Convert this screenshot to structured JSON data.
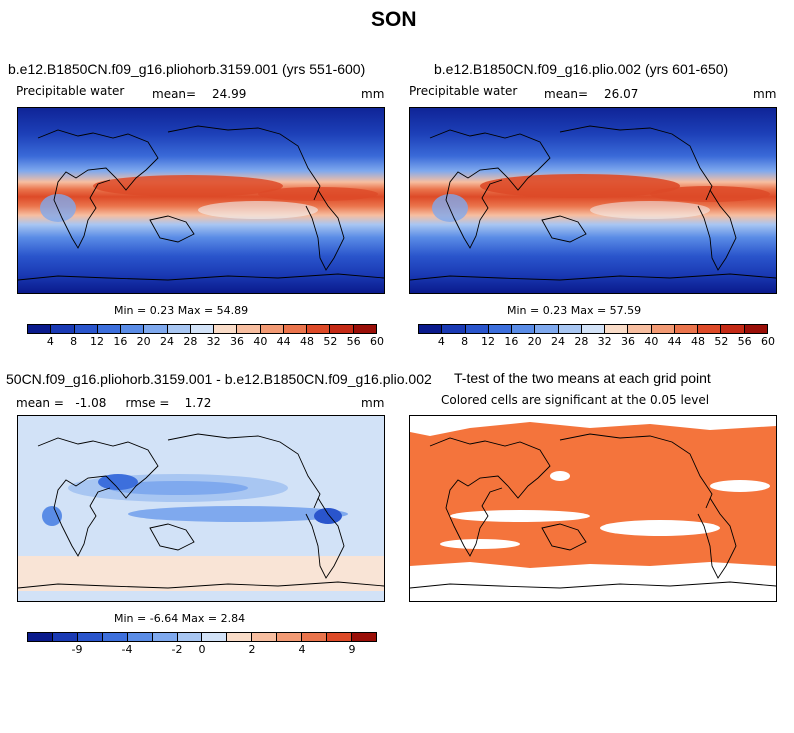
{
  "title": "SON",
  "colors": {
    "abs_levels": [
      "#0a1a8c",
      "#1a3ab4",
      "#2a55cc",
      "#3d6fdc",
      "#5a8ce6",
      "#7fa9ee",
      "#a8c6f2",
      "#d2e2f7",
      "#f9dcc8",
      "#f7bea0",
      "#f29a74",
      "#ea744c",
      "#dd4a28",
      "#c42a16",
      "#9a0f08"
    ],
    "diff_levels": [
      "#0a1a8c",
      "#1a3ab4",
      "#2a55cc",
      "#3d6fdc",
      "#5a8ce6",
      "#7fa9ee",
      "#a8c6f2",
      "#d2e2f7",
      "#f9dcc8",
      "#f7bea0",
      "#f29a74",
      "#ea744c",
      "#dd4a28",
      "#9a0f08"
    ],
    "significant": "#f4743c"
  },
  "panels": {
    "p1": {
      "title": "b.e12.B1850CN.f09_g16.pliohorb.3159.001 (yrs 551-600)",
      "var": "Precipitable water",
      "mean_label": "mean=",
      "mean": "24.99",
      "units": "mm",
      "minmax": "Min =    0.23 Max =   54.89"
    },
    "p2": {
      "title": "b.e12.B1850CN.f09_g16.plio.002 (yrs 601-650)",
      "var": "Precipitable water",
      "mean_label": "mean=",
      "mean": "26.07",
      "units": "mm",
      "minmax": "Min =    0.23 Max =   57.59"
    },
    "p3": {
      "title": "50CN.f09_g16.pliohorb.3159.001 - b.e12.B1850CN.f09_g16.plio.002",
      "stats": "mean =   -1.08     rmse =    1.72",
      "units": "mm",
      "minmax": "Min =   -6.64 Max =    2.84"
    },
    "p4": {
      "title": "T-test of the two means at each grid point",
      "sub": "Colored cells are significant at the 0.05 level"
    }
  },
  "chart_data": [
    {
      "type": "heatmap",
      "title": "b.e12.B1850CN.f09_g16.pliohorb.3159.001 (yrs 551-600)",
      "variable": "Precipitable water",
      "units": "mm",
      "mean": 24.99,
      "min": 0.23,
      "max": 54.89,
      "colorbar_ticks": [
        "4",
        "8",
        "12",
        "16",
        "20",
        "24",
        "28",
        "32",
        "36",
        "40",
        "44",
        "48",
        "52",
        "56",
        "60"
      ]
    },
    {
      "type": "heatmap",
      "title": "b.e12.B1850CN.f09_g16.plio.002 (yrs 601-650)",
      "variable": "Precipitable water",
      "units": "mm",
      "mean": 26.07,
      "min": 0.23,
      "max": 57.59,
      "colorbar_ticks": [
        "4",
        "8",
        "12",
        "16",
        "20",
        "24",
        "28",
        "32",
        "36",
        "40",
        "44",
        "48",
        "52",
        "56",
        "60"
      ]
    },
    {
      "type": "heatmap",
      "title": "50CN.f09_g16.pliohorb.3159.001 - b.e12.B1850CN.f09_g16.plio.002",
      "units": "mm",
      "mean": -1.08,
      "rmse": 1.72,
      "min": -6.64,
      "max": 2.84,
      "colorbar_ticks": [
        "-9",
        "-4",
        "-2",
        "0",
        "2",
        "4",
        "9"
      ]
    },
    {
      "type": "heatmap",
      "title": "T-test of the two means at each grid point",
      "subtitle": "Colored cells are significant at the 0.05 level"
    }
  ]
}
